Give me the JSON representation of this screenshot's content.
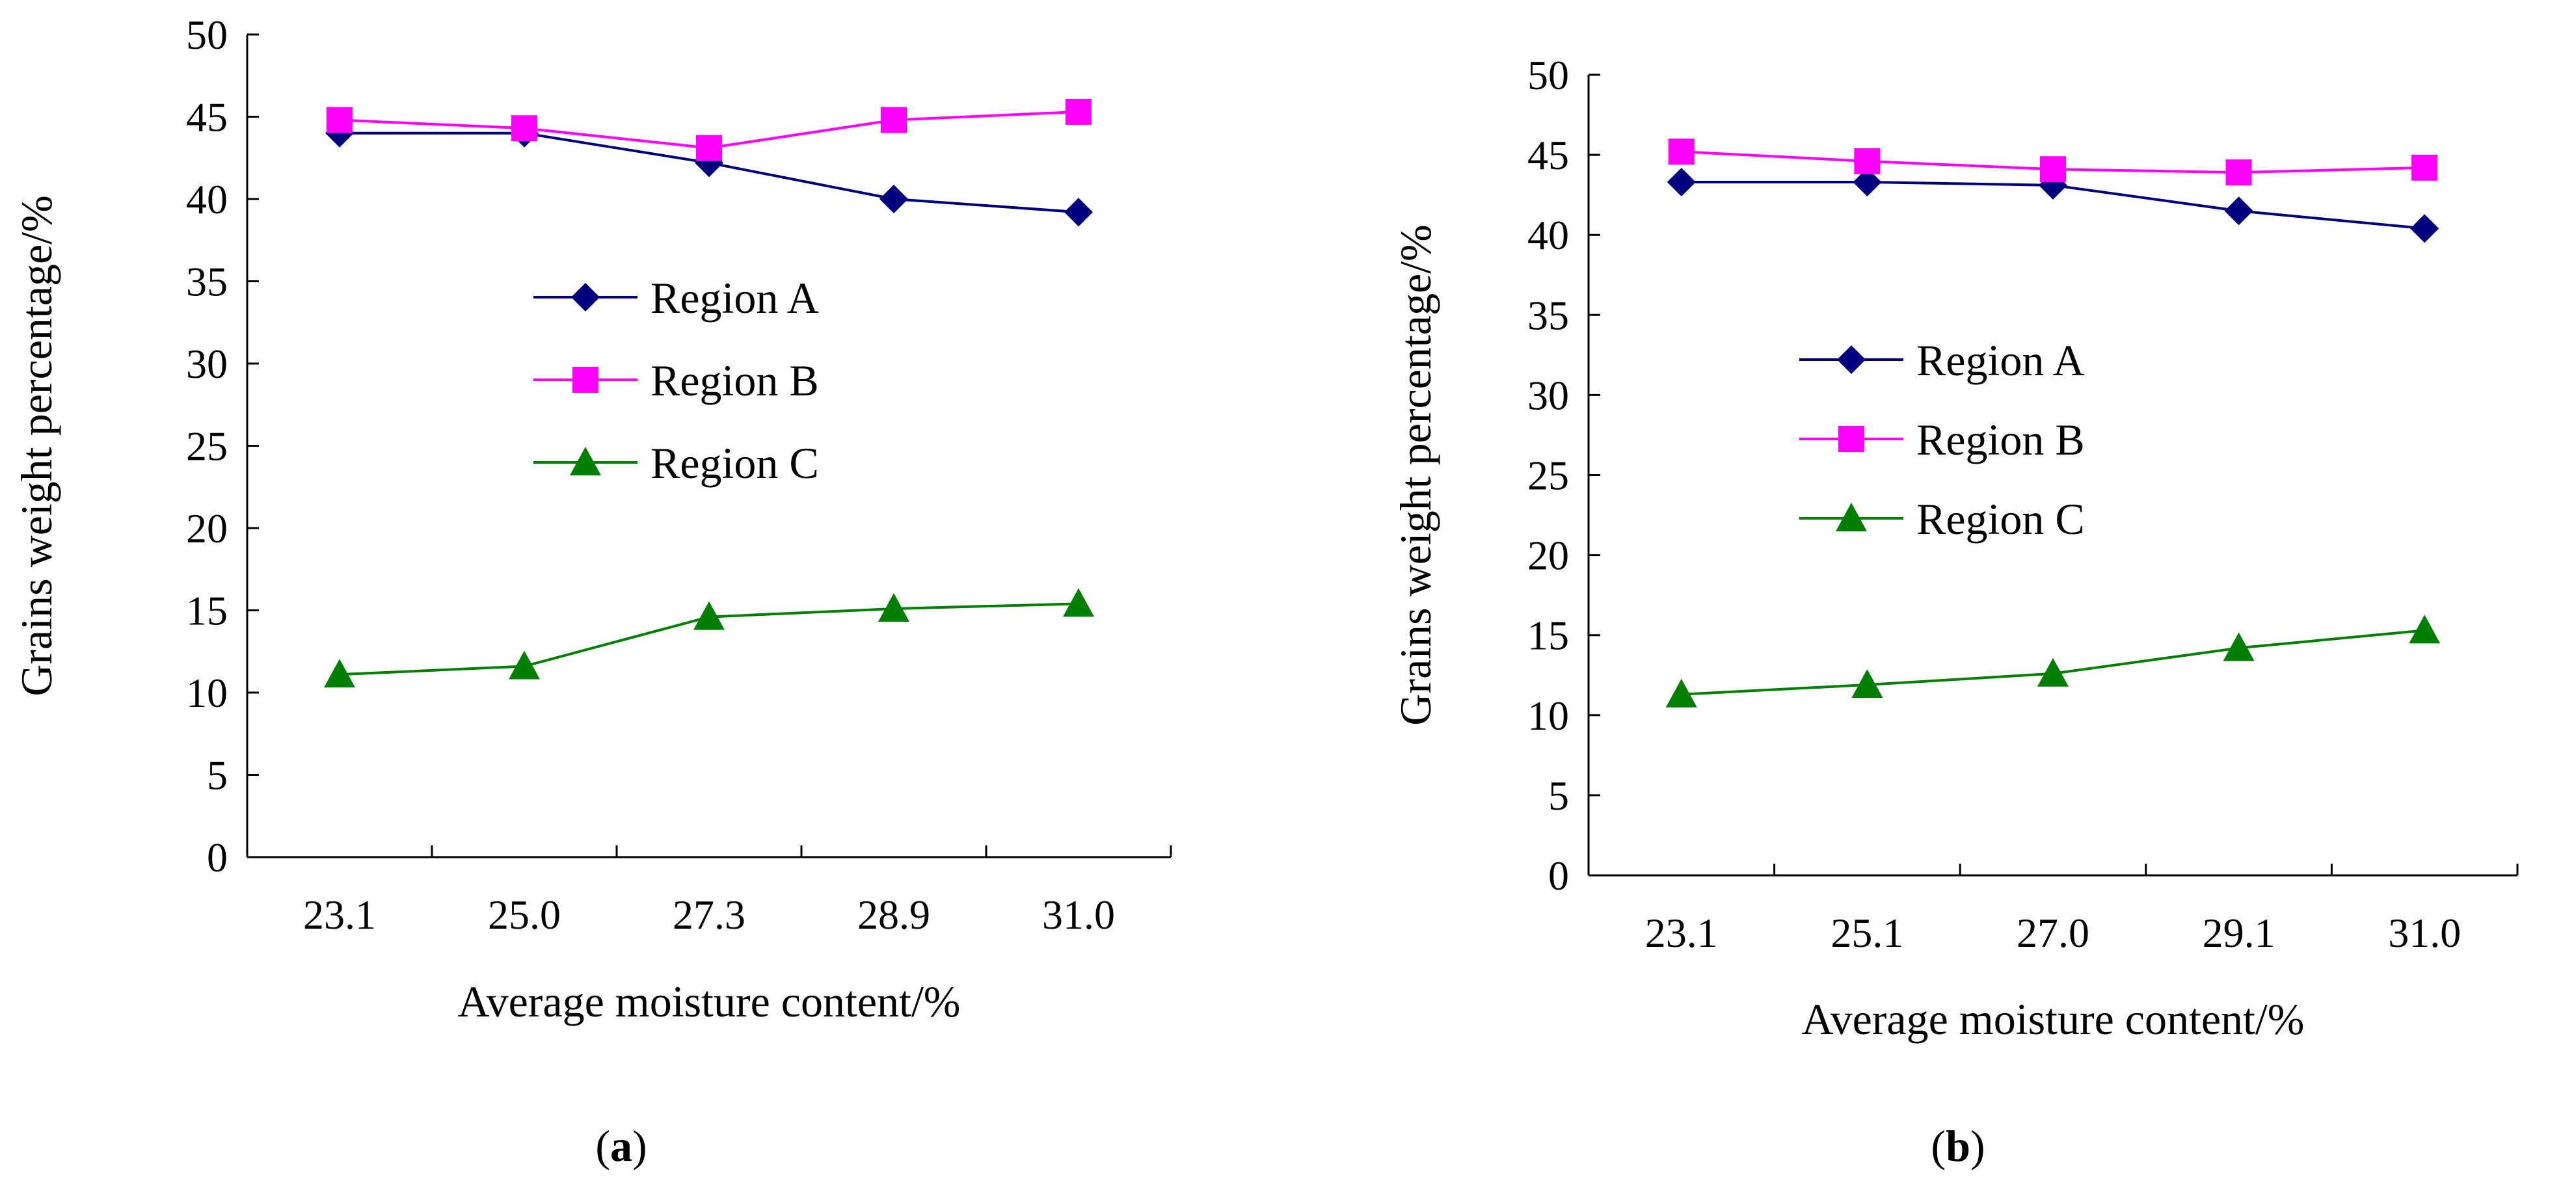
{
  "chart_data": [
    {
      "type": "line",
      "panel": "a",
      "categories": [
        "23.1",
        "25.0",
        "27.3",
        "28.9",
        "31.0"
      ],
      "series": [
        {
          "name": "Region A",
          "color": "#00007F",
          "marker": "diamond",
          "values": [
            44.0,
            44.0,
            42.2,
            40.0,
            39.2
          ]
        },
        {
          "name": "Region B",
          "color": "#FF00FF",
          "marker": "square",
          "values": [
            44.8,
            44.3,
            43.1,
            44.8,
            45.3
          ]
        },
        {
          "name": "Region C",
          "color": "#007F00",
          "marker": "triangle",
          "values": [
            11.1,
            11.6,
            14.6,
            15.1,
            15.4
          ]
        }
      ],
      "xlabel": "Average moisture content/%",
      "ylabel": "Grains weight percentage/%",
      "ylim": [
        0,
        50
      ],
      "yticks": [
        "0",
        "5",
        "10",
        "15",
        "20",
        "25",
        "30",
        "35",
        "40",
        "45",
        "50"
      ],
      "grid": false,
      "legend": "center",
      "caption_letter": "a"
    },
    {
      "type": "line",
      "panel": "b",
      "categories": [
        "23.1",
        "25.1",
        "27.0",
        "29.1",
        "31.0"
      ],
      "series": [
        {
          "name": "Region A",
          "color": "#00007F",
          "marker": "diamond",
          "values": [
            43.3,
            43.3,
            43.1,
            41.5,
            40.4
          ]
        },
        {
          "name": "Region B",
          "color": "#FF00FF",
          "marker": "square",
          "values": [
            45.2,
            44.6,
            44.1,
            43.9,
            44.2
          ]
        },
        {
          "name": "Region C",
          "color": "#007F00",
          "marker": "triangle",
          "values": [
            11.3,
            11.9,
            12.6,
            14.2,
            15.3
          ]
        }
      ],
      "xlabel": "Average moisture content/%",
      "ylabel": "Grains weight percentage/%",
      "ylim": [
        0,
        50
      ],
      "yticks": [
        "0",
        "5",
        "10",
        "15",
        "20",
        "25",
        "30",
        "35",
        "40",
        "45",
        "50"
      ],
      "grid": false,
      "legend": "center-left",
      "caption_letter": "b"
    }
  ]
}
